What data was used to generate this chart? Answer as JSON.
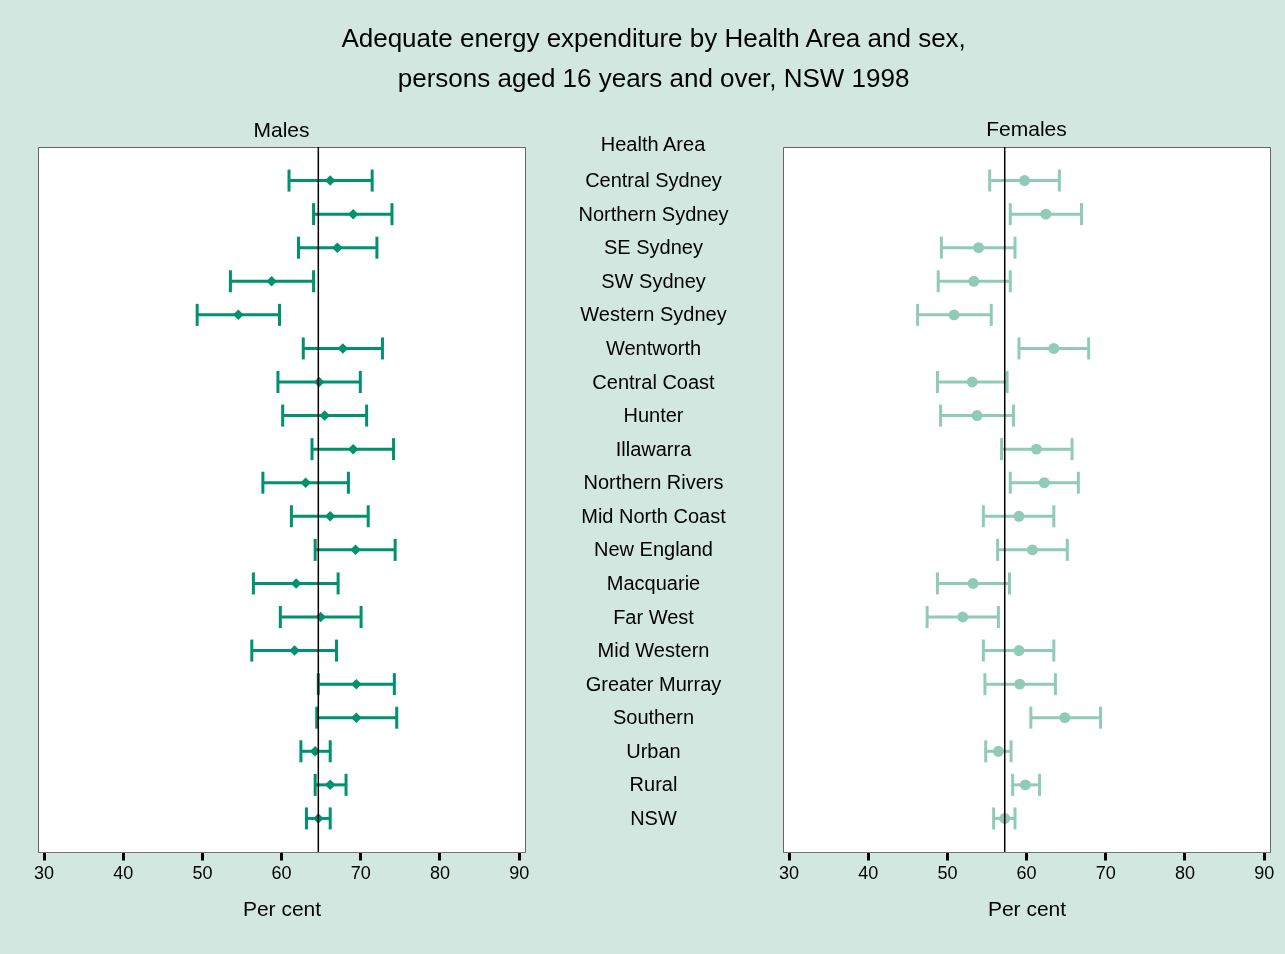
{
  "chart_data": [
    {
      "type": "scatter",
      "title": "Adequate energy expenditure by Health Area and sex,\npersons aged 16 years and over, NSW 1998",
      "subtitle": "Males",
      "ylabel": "Health Area",
      "xlabel": "Per cent",
      "orientation": "horizontal",
      "marker": "diamond",
      "categories": [
        "Central Sydney",
        "Northern Sydney",
        "SE Sydney",
        "SW Sydney",
        "Western Sydney",
        "Wentworth",
        "Central Coast",
        "Hunter",
        "Illawarra",
        "Northern Rivers",
        "Mid North Coast",
        "New England",
        "Macquarie",
        "Far West",
        "Mid Western",
        "Greater Murray",
        "Southern",
        "Urban",
        "Rural",
        "NSW"
      ],
      "xlim": [
        29.3,
        90.8
      ],
      "xticks": [
        30,
        40,
        50,
        60,
        70,
        80,
        90
      ],
      "series": [
        {
          "color": "#00916e",
          "values": [
            66.2,
            69.1,
            67.1,
            58.8,
            54.6,
            67.8,
            64.8,
            65.5,
            69.1,
            63.1,
            66.2,
            69.4,
            61.9,
            65.0,
            61.7,
            69.5,
            69.5,
            64.3,
            66.2,
            64.7
          ],
          "errors": [
            [
              61.0,
              71.5
            ],
            [
              64.1,
              74.0
            ],
            [
              62.2,
              72.1
            ],
            [
              53.6,
              64.1
            ],
            [
              49.4,
              59.8
            ],
            [
              62.8,
              72.8
            ],
            [
              59.6,
              70.0
            ],
            [
              60.2,
              70.8
            ],
            [
              63.9,
              74.2
            ],
            [
              57.7,
              68.5
            ],
            [
              61.3,
              71.0
            ],
            [
              64.3,
              74.4
            ],
            [
              56.5,
              67.2
            ],
            [
              59.9,
              70.1
            ],
            [
              56.3,
              67.0
            ],
            [
              64.7,
              74.3
            ],
            [
              64.5,
              74.6
            ],
            [
              62.5,
              66.2
            ],
            [
              64.3,
              68.2
            ],
            [
              63.2,
              66.2
            ]
          ]
        }
      ],
      "ref_lines": [
        {
          "axis": "x",
          "value": 64.7,
          "color": "#000000"
        }
      ]
    },
    {
      "type": "scatter",
      "subtitle": "Females",
      "xlabel": "Per cent",
      "orientation": "horizontal",
      "marker": "circle",
      "tick_labels": "x",
      "xlim": [
        29.3,
        90.8
      ],
      "xticks": [
        30,
        40,
        50,
        60,
        70,
        80,
        90
      ],
      "series": [
        {
          "color": "#8fcbb8",
          "values": [
            59.8,
            62.5,
            54.0,
            53.4,
            50.9,
            63.5,
            53.2,
            53.8,
            61.3,
            62.3,
            59.1,
            60.8,
            53.3,
            52.0,
            59.1,
            59.2,
            64.9,
            56.5,
            59.9,
            57.3
          ],
          "errors": [
            [
              55.4,
              64.2
            ],
            [
              58.0,
              67.0
            ],
            [
              49.3,
              58.6
            ],
            [
              48.9,
              58.0
            ],
            [
              46.3,
              55.6
            ],
            [
              59.1,
              67.9
            ],
            [
              48.8,
              57.6
            ],
            [
              49.2,
              58.4
            ],
            [
              56.9,
              65.8
            ],
            [
              58.0,
              66.6
            ],
            [
              54.6,
              63.5
            ],
            [
              56.4,
              65.2
            ],
            [
              48.8,
              57.9
            ],
            [
              47.5,
              56.5
            ],
            [
              54.6,
              63.5
            ],
            [
              54.8,
              63.7
            ],
            [
              60.6,
              69.4
            ],
            [
              54.9,
              58.1
            ],
            [
              58.3,
              61.7
            ],
            [
              55.9,
              58.6
            ]
          ]
        }
      ],
      "ref_lines": [
        {
          "axis": "x",
          "value": 57.3,
          "color": "#000000"
        }
      ]
    }
  ]
}
